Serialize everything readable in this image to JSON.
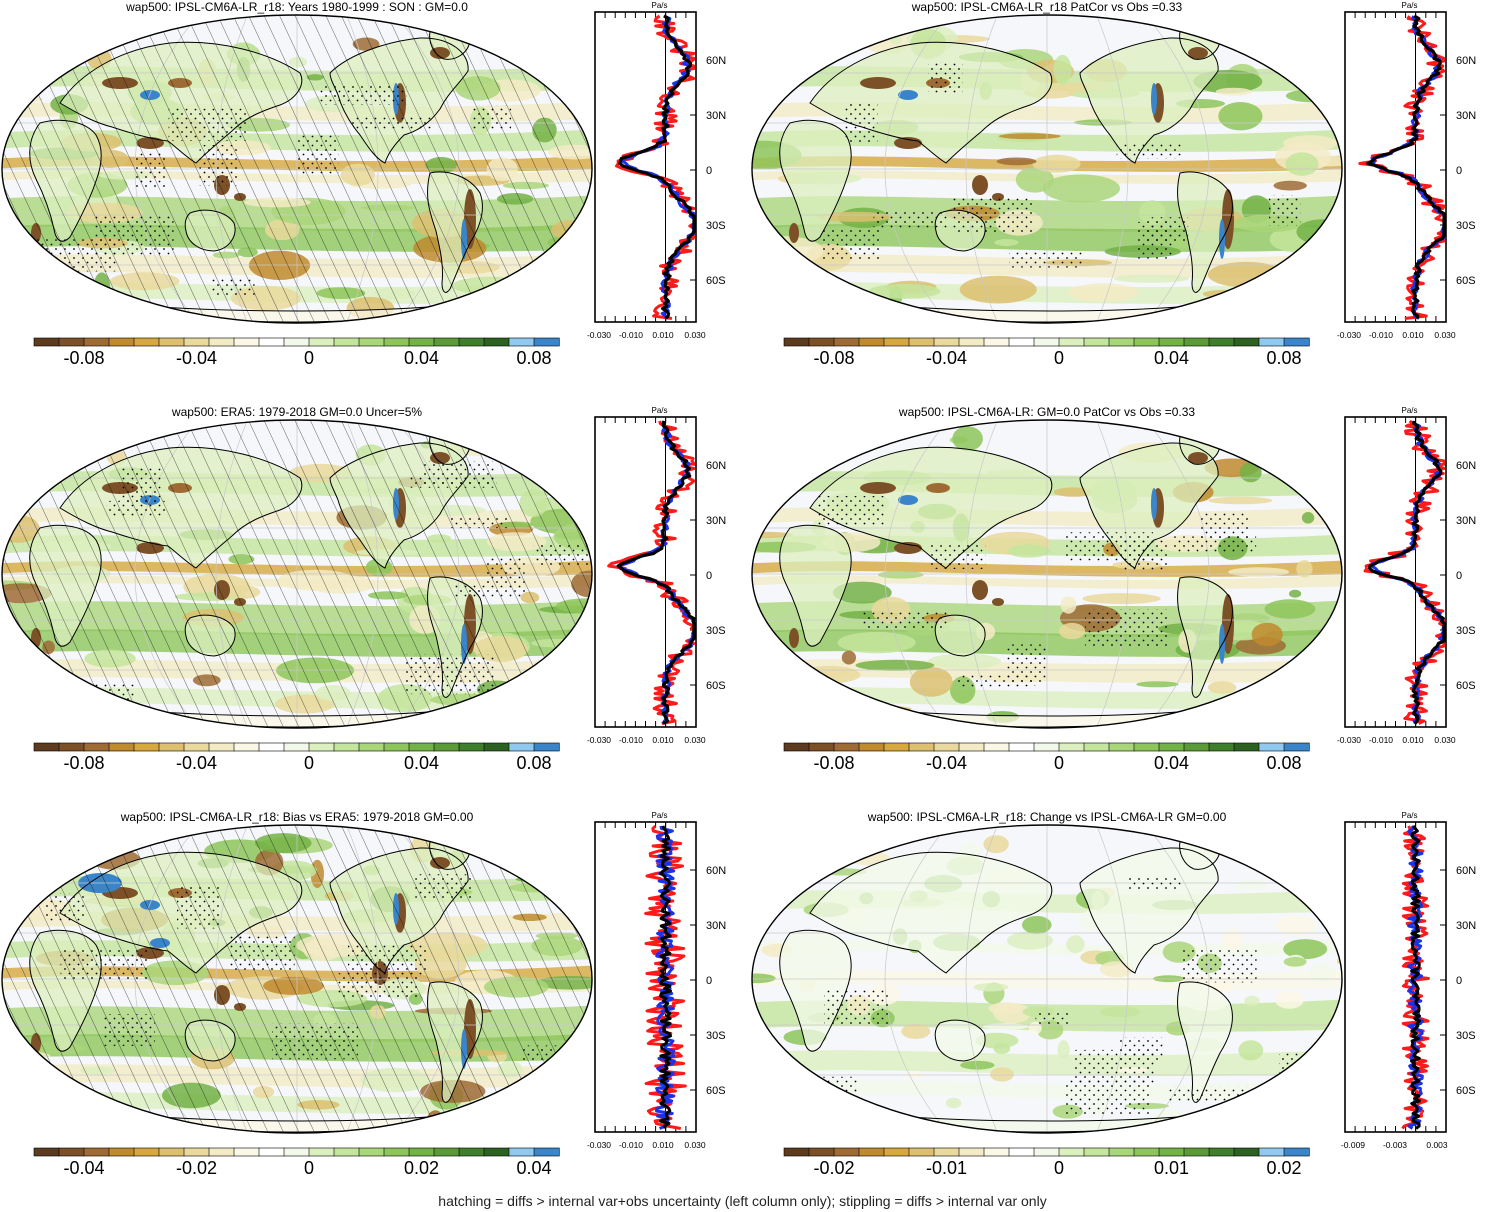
{
  "colors": {
    "scale": [
      "#5c3b1e",
      "#7d5128",
      "#9e6b35",
      "#c08a2e",
      "#d6a83e",
      "#dcc070",
      "#e9d99c",
      "#f3ebc6",
      "#fbf7e6",
      "#ffffff",
      "#f3f9ea",
      "#dcefbf",
      "#c4e59c",
      "#aad67a",
      "#8dc55b",
      "#73b247",
      "#5a9b38",
      "#3f7e2a",
      "#2c6121",
      "#8fc9ef",
      "#3a84c9"
    ],
    "ocean": "#f5f7fb",
    "obs": "#000000",
    "model": "#1b32e8",
    "diff": "#ff1a1a"
  },
  "panels": [
    {
      "title": "wap500: IPSL-CM6A-LR_r18: Years 1980-1999 : SON : GM=0.0",
      "colorbar_ticks": [
        "-0.08",
        "-0.04",
        "0",
        "0.04",
        "0.08"
      ],
      "profile": {
        "unit": "Pa/s",
        "x_ticks": [
          "-0.030",
          "-0.010",
          "0.010",
          "0.030"
        ],
        "y_ticks": [
          "60N",
          "30N",
          "0",
          "30S",
          "60S"
        ]
      },
      "hatching": true
    },
    {
      "title": "wap500: IPSL-CM6A-LR_r18 PatCor vs Obs =0.33",
      "colorbar_ticks": [
        "-0.08",
        "-0.04",
        "0",
        "0.04",
        "0.08"
      ],
      "profile": {
        "unit": "Pa/s",
        "x_ticks": [
          "-0.030",
          "-0.010",
          "0.010",
          "0.030"
        ],
        "y_ticks": [
          "60N",
          "30N",
          "0",
          "30S",
          "60S"
        ]
      },
      "hatching": false
    },
    {
      "title": "wap500: ERA5: 1979-2018 GM=0.0 Uncer=5%",
      "colorbar_ticks": [
        "-0.08",
        "-0.04",
        "0",
        "0.04",
        "0.08"
      ],
      "profile": {
        "unit": "Pa/s",
        "x_ticks": [
          "-0.030",
          "-0.010",
          "0.010",
          "0.030"
        ],
        "y_ticks": [
          "60N",
          "30N",
          "0",
          "30S",
          "60S"
        ]
      },
      "hatching": true
    },
    {
      "title": "wap500: IPSL-CM6A-LR: GM=0.0 PatCor vs Obs =0.33",
      "colorbar_ticks": [
        "-0.08",
        "-0.04",
        "0",
        "0.04",
        "0.08"
      ],
      "profile": {
        "unit": "Pa/s",
        "x_ticks": [
          "-0.030",
          "-0.010",
          "0.010",
          "0.030"
        ],
        "y_ticks": [
          "60N",
          "30N",
          "0",
          "30S",
          "60S"
        ]
      },
      "hatching": false
    },
    {
      "title": "wap500: IPSL-CM6A-LR_r18: Bias vs ERA5: 1979-2018  GM=0.00",
      "colorbar_ticks": [
        "-0.04",
        "-0.02",
        "0",
        "0.02",
        "0.04"
      ],
      "profile": {
        "unit": "Pa/s",
        "x_ticks": [
          "-0.030",
          "-0.010",
          "0.010",
          "0.030"
        ],
        "y_ticks": [
          "60N",
          "30N",
          "0",
          "30S",
          "60S"
        ]
      },
      "hatching": true
    },
    {
      "title": "wap500: IPSL-CM6A-LR_r18: Change vs IPSL-CM6A-LR GM=0.00",
      "colorbar_ticks": [
        "-0.02",
        "-0.01",
        "0",
        "0.01",
        "0.02"
      ],
      "profile": {
        "unit": "Pa/s",
        "x_ticks": [
          "-0.009",
          "-0.003",
          "0.003"
        ],
        "y_ticks": [
          "60N",
          "30N",
          "0",
          "30S",
          "60S"
        ]
      },
      "hatching": false
    }
  ],
  "footnote": "hatching = diffs > internal var+obs uncertainty (left column only); stippling = diffs > internal var only"
}
